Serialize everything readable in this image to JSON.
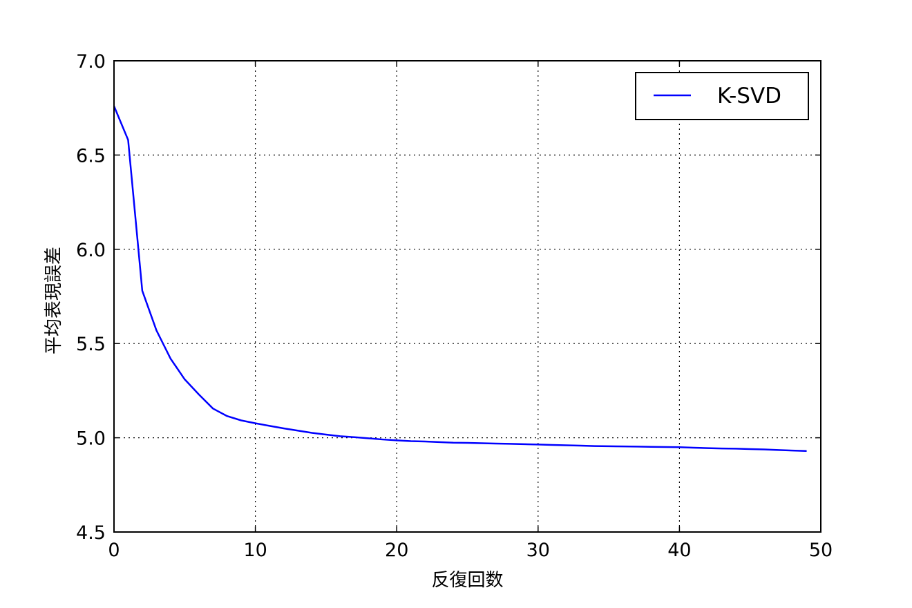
{
  "chart_data": {
    "type": "line",
    "title": "",
    "xlabel": "反復回数",
    "ylabel": "平均表現誤差",
    "xlim": [
      0,
      50
    ],
    "ylim": [
      4.5,
      7.0
    ],
    "xticks": [
      "0",
      "10",
      "20",
      "30",
      "40",
      "50"
    ],
    "yticks": [
      "4.5",
      "5.0",
      "5.5",
      "6.0",
      "6.5",
      "7.0"
    ],
    "grid": true,
    "grid_style": "dotted",
    "legend_position": "top-right",
    "series": [
      {
        "name": "K-SVD",
        "color": "#0000ff",
        "x": [
          0,
          1,
          2,
          3,
          4,
          5,
          6,
          7,
          8,
          9,
          10,
          11,
          12,
          13,
          14,
          15,
          16,
          17,
          18,
          19,
          20,
          21,
          22,
          23,
          24,
          25,
          26,
          27,
          28,
          29,
          30,
          31,
          32,
          33,
          34,
          35,
          36,
          37,
          38,
          39,
          40,
          41,
          42,
          43,
          44,
          45,
          46,
          47,
          48,
          49
        ],
        "y": [
          6.76,
          6.58,
          5.78,
          5.57,
          5.42,
          5.31,
          5.23,
          5.155,
          5.115,
          5.092,
          5.077,
          5.063,
          5.05,
          5.038,
          5.026,
          5.017,
          5.008,
          5.003,
          4.997,
          4.991,
          4.986,
          4.982,
          4.98,
          4.977,
          4.974,
          4.973,
          4.971,
          4.969,
          4.968,
          4.966,
          4.964,
          4.962,
          4.96,
          4.958,
          4.956,
          4.955,
          4.954,
          4.953,
          4.952,
          4.951,
          4.95,
          4.947,
          4.945,
          4.943,
          4.942,
          4.94,
          4.938,
          4.935,
          4.932,
          4.93
        ]
      }
    ]
  }
}
